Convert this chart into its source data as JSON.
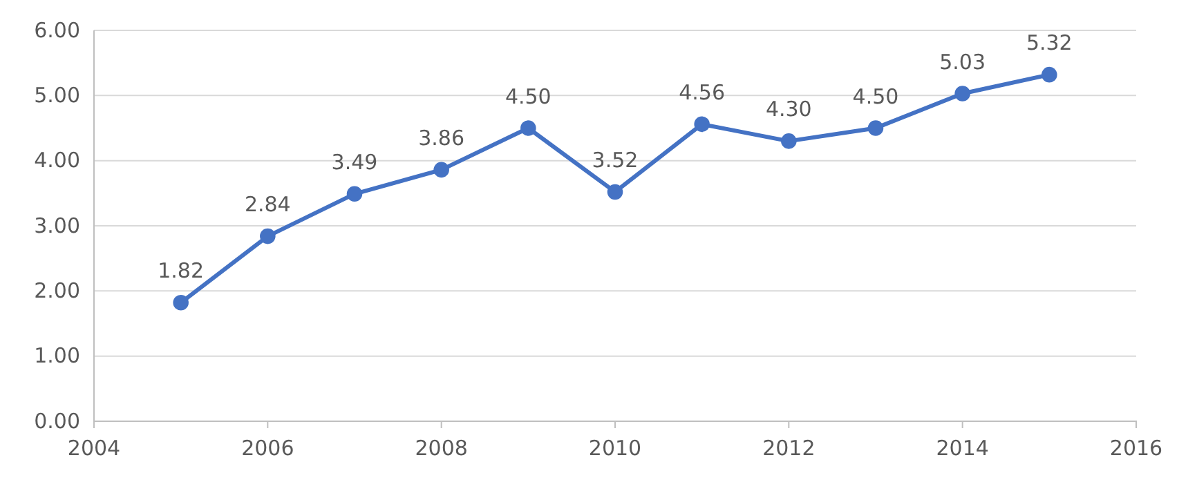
{
  "chart_data": {
    "type": "line",
    "x": [
      2005,
      2006,
      2007,
      2008,
      2009,
      2010,
      2011,
      2012,
      2013,
      2014,
      2015
    ],
    "series": [
      {
        "color": "#4472c4",
        "values": [
          1.82,
          2.84,
          3.49,
          3.86,
          4.5,
          3.52,
          4.56,
          4.3,
          4.5,
          5.03,
          5.32
        ],
        "value_labels": [
          "1.82",
          "2.84",
          "3.49",
          "3.86",
          "4.50",
          "3.52",
          "4.56",
          "4.30",
          "4.50",
          "5.03",
          "5.32"
        ]
      }
    ],
    "xlim": [
      2004,
      2016
    ],
    "xticks": [
      2004,
      2006,
      2008,
      2010,
      2012,
      2014,
      2016
    ],
    "ylim": [
      0,
      6
    ],
    "yticks": [
      {
        "value": 0,
        "label": "0.00"
      },
      {
        "value": 1,
        "label": "1.00"
      },
      {
        "value": 2,
        "label": "2.00"
      },
      {
        "value": 3,
        "label": "3.00"
      },
      {
        "value": 4,
        "label": "4.00"
      },
      {
        "value": 5,
        "label": "5.00"
      },
      {
        "value": 6,
        "label": "6.00"
      }
    ],
    "grid": "y",
    "marker": "circle",
    "line_style": "solid"
  }
}
